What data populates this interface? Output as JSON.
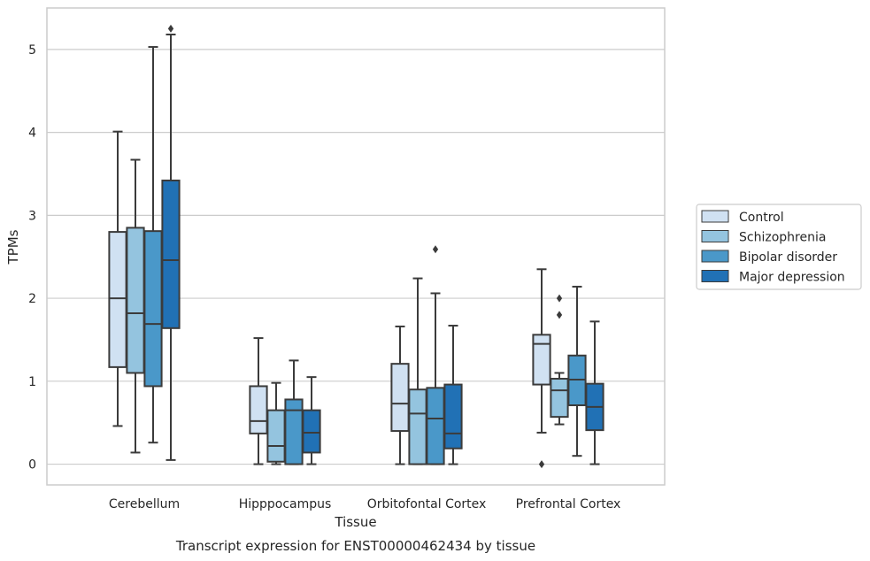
{
  "chart_data": {
    "type": "box",
    "xlabel": "Tissue",
    "ylabel": "TPMs",
    "caption": "Transcript expression for ENST00000462434 by tissue",
    "ylim": [
      -0.25,
      5.5
    ],
    "yticks": [
      0,
      1,
      2,
      3,
      4,
      5
    ],
    "grid": "horizontal",
    "legend_position": "right",
    "categories": [
      "Cerebellum",
      "Hipppocampus",
      "Orbitofontal Cortex",
      "Prefrontal Cortex"
    ],
    "series": [
      {
        "name": "Control",
        "color": "#d0e1f2",
        "boxes": [
          {
            "whisker_low": 0.46,
            "q1": 1.17,
            "median": 2.0,
            "q3": 2.8,
            "whisker_high": 4.01,
            "outliers": []
          },
          {
            "whisker_low": 0.0,
            "q1": 0.37,
            "median": 0.52,
            "q3": 0.94,
            "whisker_high": 1.52,
            "outliers": []
          },
          {
            "whisker_low": 0.0,
            "q1": 0.4,
            "median": 0.73,
            "q3": 1.21,
            "whisker_high": 1.66,
            "outliers": []
          },
          {
            "whisker_low": 0.38,
            "q1": 0.96,
            "median": 1.45,
            "q3": 1.56,
            "whisker_high": 2.35,
            "outliers": [
              0.0
            ]
          }
        ]
      },
      {
        "name": "Schizophrenia",
        "color": "#94c4df",
        "boxes": [
          {
            "whisker_low": 0.14,
            "q1": 1.1,
            "median": 1.82,
            "q3": 2.85,
            "whisker_high": 3.67,
            "outliers": []
          },
          {
            "whisker_low": 0.0,
            "q1": 0.03,
            "median": 0.22,
            "q3": 0.65,
            "whisker_high": 0.98,
            "outliers": []
          },
          {
            "whisker_low": 0.0,
            "q1": 0.0,
            "median": 0.61,
            "q3": 0.9,
            "whisker_high": 2.24,
            "outliers": []
          },
          {
            "whisker_low": 0.48,
            "q1": 0.57,
            "median": 0.89,
            "q3": 1.03,
            "whisker_high": 1.1,
            "outliers": [
              1.8,
              2.0
            ]
          }
        ]
      },
      {
        "name": "Bipolar disorder",
        "color": "#4a98c9",
        "boxes": [
          {
            "whisker_low": 0.26,
            "q1": 0.94,
            "median": 1.69,
            "q3": 2.81,
            "whisker_high": 5.03,
            "outliers": []
          },
          {
            "whisker_low": 0.0,
            "q1": 0.0,
            "median": 0.65,
            "q3": 0.78,
            "whisker_high": 1.25,
            "outliers": []
          },
          {
            "whisker_low": 0.0,
            "q1": 0.0,
            "median": 0.55,
            "q3": 0.92,
            "whisker_high": 2.06,
            "outliers": [
              2.59
            ]
          },
          {
            "whisker_low": 0.1,
            "q1": 0.71,
            "median": 1.02,
            "q3": 1.31,
            "whisker_high": 2.14,
            "outliers": []
          }
        ]
      },
      {
        "name": "Major depression",
        "color": "#2171b5",
        "boxes": [
          {
            "whisker_low": 0.05,
            "q1": 1.64,
            "median": 2.46,
            "q3": 3.42,
            "whisker_high": 5.18,
            "outliers": [
              5.25
            ]
          },
          {
            "whisker_low": 0.0,
            "q1": 0.14,
            "median": 0.38,
            "q3": 0.65,
            "whisker_high": 1.05,
            "outliers": []
          },
          {
            "whisker_low": 0.0,
            "q1": 0.19,
            "median": 0.37,
            "q3": 0.96,
            "whisker_high": 1.67,
            "outliers": []
          },
          {
            "whisker_low": 0.0,
            "q1": 0.41,
            "median": 0.69,
            "q3": 0.97,
            "whisker_high": 1.72,
            "outliers": []
          }
        ]
      }
    ],
    "style": {
      "frame_color": "#cccccc",
      "grid_color": "#cccccc",
      "line_color": "#3b3b3b",
      "text_color": "#262626"
    }
  }
}
